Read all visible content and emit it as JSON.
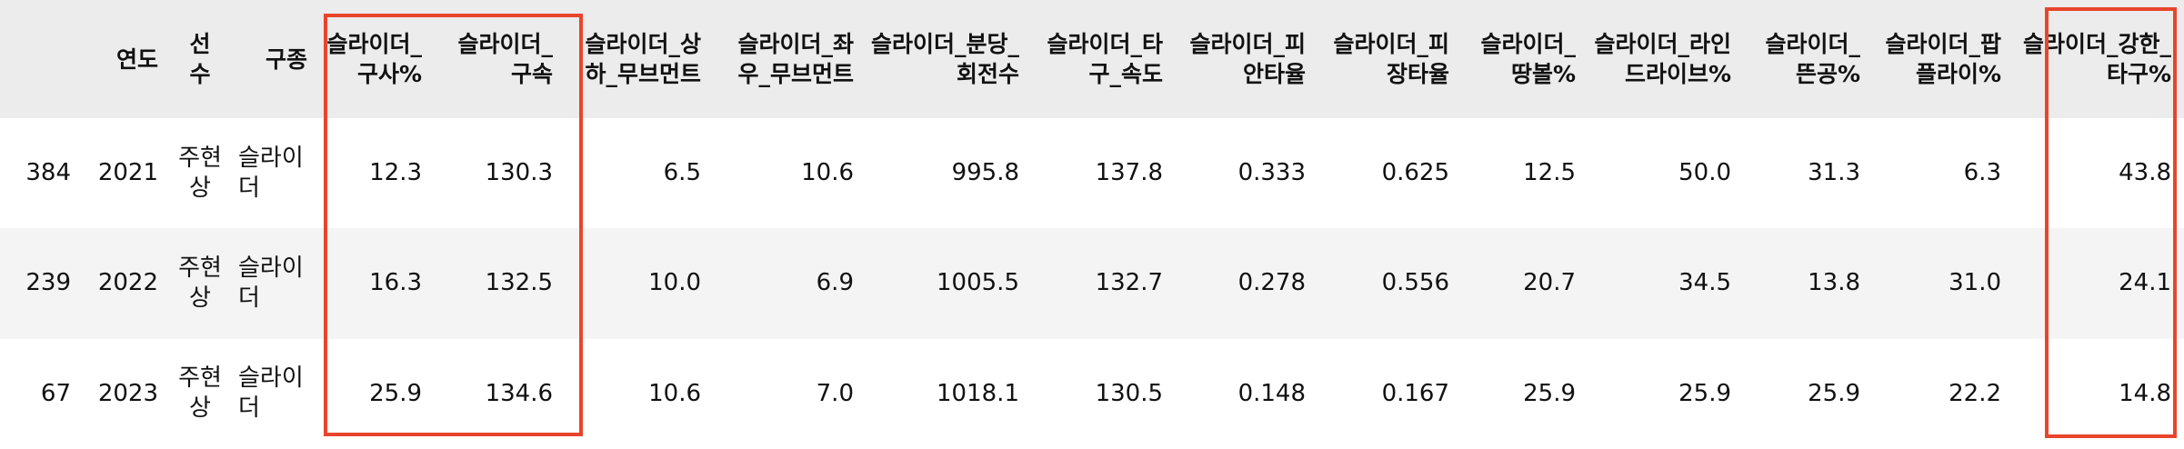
{
  "table": {
    "headers": [
      "",
      "연도",
      "선수",
      "구종",
      "슬라이더_구사%",
      "슬라이더_구속",
      "슬라이더_상하_무브먼트",
      "슬라이더_좌우_무브먼트",
      "슬라이더_분당_회전수",
      "슬라이더_타구_속도",
      "슬라이더_피안타율",
      "슬라이더_피장타율",
      "슬라이더_땅볼%",
      "슬라이더_라인드라이브%",
      "슬라이더_뜬공%",
      "슬라이더_팝플라이%",
      "슬라이더_강한_타구%"
    ],
    "rows": [
      [
        "384",
        "2021",
        "주현상",
        "슬라이더",
        "12.3",
        "130.3",
        "6.5",
        "10.6",
        "995.8",
        "137.8",
        "0.333",
        "0.625",
        "12.5",
        "50.0",
        "31.3",
        "6.3",
        "43.8"
      ],
      [
        "239",
        "2022",
        "주현상",
        "슬라이더",
        "16.3",
        "132.5",
        "10.0",
        "6.9",
        "1005.5",
        "132.7",
        "0.278",
        "0.556",
        "20.7",
        "34.5",
        "13.8",
        "31.0",
        "24.1"
      ],
      [
        "67",
        "2023",
        "주현상",
        "슬라이더",
        "25.9",
        "134.6",
        "10.6",
        "7.0",
        "1018.1",
        "130.5",
        "0.148",
        "0.167",
        "25.9",
        "25.9",
        "25.9",
        "22.2",
        "14.8"
      ]
    ]
  },
  "annotations": {
    "highlight_color": "#e8452c",
    "highlighted_columns": [
      "슬라이더_구사%",
      "슬라이더_구속",
      "슬라이더_강한_타구%"
    ]
  }
}
